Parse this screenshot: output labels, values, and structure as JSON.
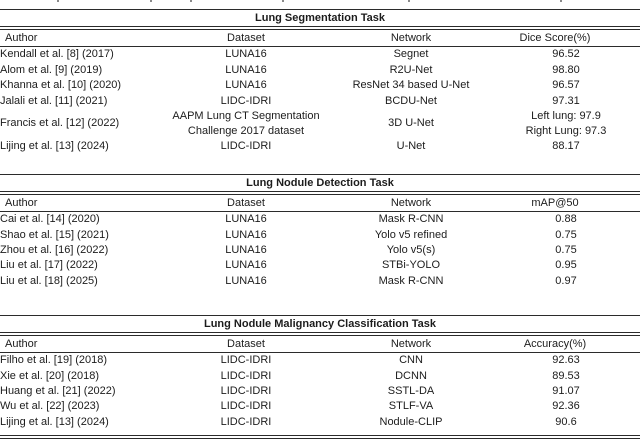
{
  "page": {
    "background": "#ffffff",
    "text_color": "#1c1c1c",
    "rule_color": "#2b2b2b",
    "note": "figure of three stacked result tables; caption line above is cut off"
  },
  "tables": [
    {
      "title": "Lung Segmentation Task",
      "columns": [
        "Author",
        "Dataset",
        "Network",
        "Dice Score(%)"
      ],
      "rows": [
        [
          "Kendall et al. [8] (2017)",
          "LUNA16",
          "Segnet",
          "96.52"
        ],
        [
          "Alom et al. [9] (2019)",
          "LUNA16",
          "R2U-Net",
          "98.80"
        ],
        [
          "Khanna et al. [10] (2020)",
          "LUNA16",
          "ResNet 34 based U-Net",
          "96.57"
        ],
        [
          "Jalali et al. [11] (2021)",
          "LIDC-IDRI",
          "BCDU-Net",
          "97.31"
        ],
        [
          "Francis et al. [12] (2022)",
          "AAPM Lung CT Segmentation\nChallenge 2017 dataset",
          "3D U-Net",
          "Left lung: 97.9\nRight Lung: 97.3"
        ],
        [
          "Lijing et al. [13] (2024)",
          "LIDC-IDRI",
          "U-Net",
          "88.17"
        ]
      ]
    },
    {
      "title": "Lung Nodule Detection Task",
      "columns": [
        "Author",
        "Dataset",
        "Network",
        "mAP@50"
      ],
      "rows": [
        [
          "Cai et al. [14] (2020)",
          "LUNA16",
          "Mask R-CNN",
          "0.88"
        ],
        [
          "Shao et al. [15] (2021)",
          "LUNA16",
          "Yolo v5 refined",
          "0.75"
        ],
        [
          "Zhou et al. [16] (2022)",
          "LUNA16",
          "Yolo v5(s)",
          "0.75"
        ],
        [
          "Liu et al. [17] (2022)",
          "LUNA16",
          "STBi-YOLO",
          "0.95"
        ],
        [
          "Liu et al. [18] (2025)",
          "LUNA16",
          "Mask R-CNN",
          "0.97"
        ]
      ]
    },
    {
      "title": "Lung Nodule Malignancy Classification Task",
      "columns": [
        "Author",
        "Dataset",
        "Network",
        "Accuracy(%)"
      ],
      "rows": [
        [
          "Filho et al. [19] (2018)",
          "LIDC-IDRI",
          "CNN",
          "92.63"
        ],
        [
          "Xie et al. [20] (2018)",
          "LIDC-IDRI",
          "DCNN",
          "89.53"
        ],
        [
          "Huang et al. [21] (2022)",
          "LIDC-IDRI",
          "SSTL-DA",
          "91.07"
        ],
        [
          "Wu et al. [22] (2023)",
          "LIDC-IDRI",
          "STLF-VA",
          "92.36"
        ],
        [
          "Lijing et al. [13] (2024)",
          "LIDC-IDRI",
          "Nodule-CLIP",
          "90.6"
        ]
      ]
    }
  ]
}
